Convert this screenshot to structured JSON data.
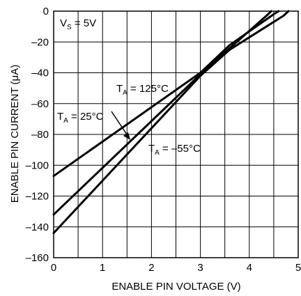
{
  "chart_data": {
    "type": "line",
    "title": "",
    "xlabel": "ENABLE PIN VOLTAGE (V)",
    "ylabel": "ENABLE PIN CURRENT (μA)",
    "xlim": [
      0,
      5
    ],
    "ylim": [
      -160,
      0
    ],
    "x_ticks": [
      "0",
      "1",
      "2",
      "3",
      "4",
      "5"
    ],
    "y_ticks": [
      "0",
      "–20",
      "–40",
      "–60",
      "–80",
      "–100",
      "–120",
      "–140",
      "–160"
    ],
    "grid": true,
    "minor_grid_x": true,
    "series": [
      {
        "name": "T_A = 125°C",
        "x": [
          0,
          3.0,
          3.6,
          4.5,
          4.6
        ],
        "y": [
          -107,
          -40,
          -22,
          -2,
          0
        ]
      },
      {
        "name": "T_A = 25°C",
        "x": [
          0,
          3.0,
          3.6,
          4.35,
          4.45
        ],
        "y": [
          -132,
          -41,
          -24,
          -3,
          0
        ]
      },
      {
        "name": "T_A = –55°C",
        "x": [
          0,
          3.0,
          3.6,
          4.7,
          4.8
        ],
        "y": [
          -144,
          -42,
          -25,
          -3,
          0
        ]
      }
    ],
    "annotations": {
      "supply": {
        "main": "V",
        "sub": "S",
        "rest": " = 5V"
      },
      "t125": {
        "main": "T",
        "sub": "A",
        "rest": " = 125°C"
      },
      "t25": {
        "main": "T",
        "sub": "A",
        "rest": " = 25°C"
      },
      "tm55": {
        "main": "T",
        "sub": "A",
        "rest": " = –55°C"
      }
    }
  }
}
